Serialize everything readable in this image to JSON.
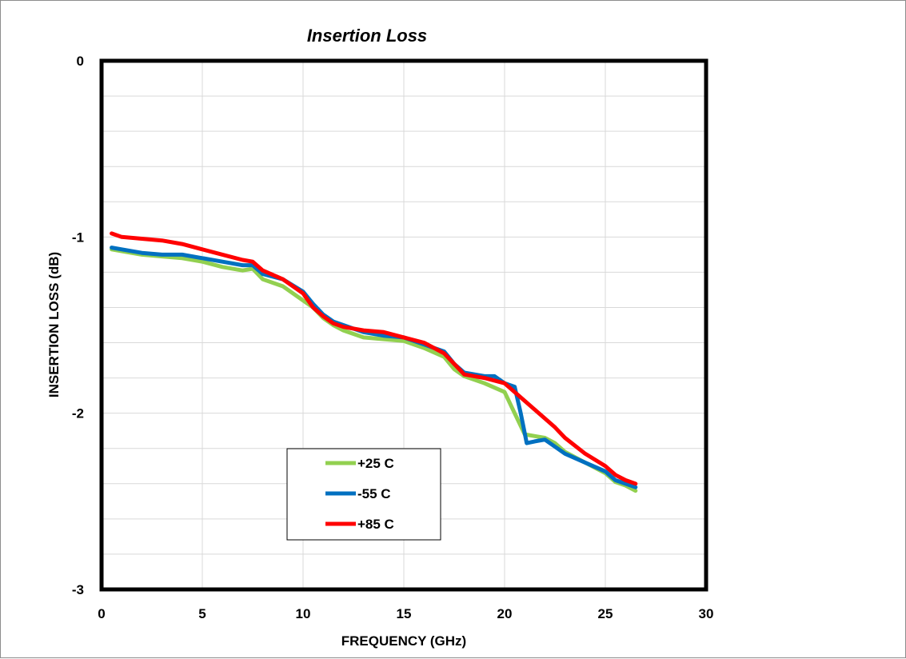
{
  "chart_data": {
    "type": "line",
    "title": "Insertion Loss",
    "xlabel": "FREQUENCY (GHz)",
    "ylabel": "INSERTION LOSS (dB)",
    "xlim": [
      0,
      30
    ],
    "ylim": [
      -3,
      0
    ],
    "x_ticks": [
      0,
      5,
      10,
      15,
      20,
      25,
      30
    ],
    "x_tick_labels": [
      "0",
      "5",
      "10",
      "15",
      "20",
      "25",
      "30"
    ],
    "y_ticks": [
      0,
      -1,
      -2,
      -3
    ],
    "y_tick_labels": [
      "0",
      "-1",
      "-2",
      "-3"
    ],
    "y_minor_step": 0.2,
    "grid": true,
    "legend_position": "lower-left",
    "series": [
      {
        "name": "+25 C",
        "color": "#92d050",
        "x": [
          0.5,
          1,
          2,
          3,
          4,
          5,
          6,
          7,
          7.5,
          8,
          9,
          10,
          10.5,
          11,
          11.5,
          12,
          13,
          14,
          15,
          16,
          17,
          17.5,
          18,
          19,
          20,
          20.5,
          21,
          21.5,
          22,
          22.5,
          23,
          24,
          25,
          25.5,
          26,
          26.5
        ],
        "y": [
          -1.07,
          -1.08,
          -1.1,
          -1.11,
          -1.12,
          -1.14,
          -1.17,
          -1.19,
          -1.18,
          -1.24,
          -1.28,
          -1.36,
          -1.4,
          -1.46,
          -1.5,
          -1.53,
          -1.57,
          -1.58,
          -1.59,
          -1.63,
          -1.68,
          -1.75,
          -1.79,
          -1.83,
          -1.88,
          -2.0,
          -2.12,
          -2.13,
          -2.14,
          -2.17,
          -2.22,
          -2.28,
          -2.34,
          -2.39,
          -2.41,
          -2.44
        ]
      },
      {
        "name": "-55 C",
        "color": "#0070c0",
        "x": [
          0.5,
          1,
          2,
          3,
          4,
          5,
          6,
          7,
          7.5,
          8,
          9,
          10,
          10.5,
          11,
          11.5,
          12,
          13,
          14,
          15,
          16,
          17,
          17.5,
          18,
          19,
          19.5,
          20,
          20.5,
          20.8,
          21.1,
          21.5,
          22,
          22.5,
          23,
          24,
          25,
          25.5,
          26,
          26.5
        ],
        "y": [
          -1.06,
          -1.07,
          -1.09,
          -1.1,
          -1.1,
          -1.12,
          -1.14,
          -1.16,
          -1.16,
          -1.21,
          -1.24,
          -1.31,
          -1.38,
          -1.44,
          -1.48,
          -1.5,
          -1.54,
          -1.56,
          -1.57,
          -1.61,
          -1.65,
          -1.72,
          -1.77,
          -1.79,
          -1.79,
          -1.83,
          -1.85,
          -2.0,
          -2.17,
          -2.16,
          -2.15,
          -2.19,
          -2.23,
          -2.28,
          -2.33,
          -2.38,
          -2.4,
          -2.42
        ]
      },
      {
        "name": "+85 C",
        "color": "#ff0000",
        "x": [
          0.5,
          1,
          2,
          3,
          4,
          5,
          6,
          7,
          7.5,
          8,
          9,
          10,
          10.5,
          11,
          11.5,
          12,
          13,
          14,
          15,
          16,
          17,
          17.5,
          18,
          19,
          20,
          20.5,
          21,
          21.5,
          22,
          22.5,
          23,
          24,
          25,
          25.5,
          26,
          26.5
        ],
        "y": [
          -0.98,
          -1.0,
          -1.01,
          -1.02,
          -1.04,
          -1.07,
          -1.1,
          -1.13,
          -1.14,
          -1.19,
          -1.24,
          -1.32,
          -1.4,
          -1.45,
          -1.49,
          -1.51,
          -1.53,
          -1.54,
          -1.57,
          -1.6,
          -1.66,
          -1.72,
          -1.78,
          -1.8,
          -1.83,
          -1.88,
          -1.93,
          -1.98,
          -2.03,
          -2.08,
          -2.14,
          -2.23,
          -2.3,
          -2.35,
          -2.38,
          -2.4
        ]
      }
    ]
  }
}
